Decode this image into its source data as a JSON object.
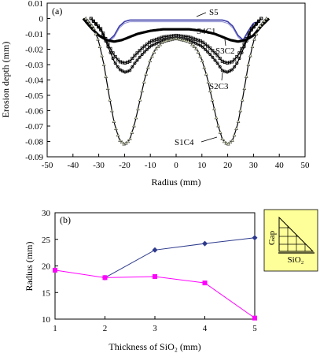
{
  "chart_data": [
    {
      "type": "line",
      "panel_label": "(a)",
      "xlabel": "Radius  (mm)",
      "ylabel": "Erosion depth  (mm)",
      "xlim": [
        -50,
        50
      ],
      "ylim": [
        -0.09,
        0.01
      ],
      "xticks": [
        "-50",
        "-40",
        "-30",
        "-20",
        "-10",
        "0",
        "10",
        "20",
        "30",
        "40",
        "50"
      ],
      "yticks": [
        "0.01",
        "0",
        "-0.01",
        "-0.02",
        "-0.03",
        "-0.04",
        "-0.05",
        "-0.06",
        "-0.07",
        "-0.08",
        "-0.09"
      ],
      "grid": false,
      "series": [
        {
          "name": "S5",
          "color": "#3a3aa8",
          "marker": "none",
          "x": [
            -26,
            -24,
            -22,
            -20,
            -18,
            -15,
            -10,
            0,
            10,
            15,
            18,
            20,
            22,
            24,
            26,
            28,
            30,
            32
          ],
          "y": [
            -0.014,
            -0.011,
            -0.005,
            -0.002,
            -0.001,
            -0.001,
            -0.001,
            -0.001,
            -0.001,
            -0.001,
            -0.001,
            -0.002,
            -0.005,
            -0.011,
            -0.014,
            -0.008,
            -0.003,
            -0.002
          ]
        },
        {
          "name": "S4C1",
          "color": "#000000",
          "marker": "dense",
          "x": [
            -36,
            -33,
            -30,
            -27,
            -24,
            -21,
            -18,
            -15,
            -10,
            -5,
            0,
            5,
            10,
            15,
            18,
            21,
            24,
            27,
            30,
            33,
            36
          ],
          "y": [
            0.0,
            -0.006,
            -0.011,
            -0.014,
            -0.015,
            -0.014,
            -0.012,
            -0.01,
            -0.008,
            -0.007,
            -0.007,
            -0.007,
            -0.008,
            -0.01,
            -0.012,
            -0.014,
            -0.015,
            -0.014,
            -0.011,
            -0.005,
            0.0
          ]
        },
        {
          "name": "S3C2",
          "color": "#000000",
          "marker": "square",
          "x": [
            -33,
            -29,
            -26,
            -24,
            -22,
            -20,
            -18,
            -16,
            -13,
            -10,
            -5,
            0,
            5,
            10,
            13,
            16,
            18,
            20,
            22,
            24,
            26,
            29,
            33
          ],
          "y": [
            0.0,
            -0.007,
            -0.018,
            -0.024,
            -0.028,
            -0.029,
            -0.028,
            -0.024,
            -0.019,
            -0.015,
            -0.012,
            -0.011,
            -0.012,
            -0.015,
            -0.019,
            -0.024,
            -0.028,
            -0.029,
            -0.028,
            -0.024,
            -0.018,
            -0.007,
            0.0
          ]
        },
        {
          "name": "S2C3",
          "color": "#000000",
          "marker": "circle",
          "x": [
            -33,
            -29,
            -26,
            -24,
            -22,
            -20,
            -18,
            -16,
            -13,
            -10,
            -5,
            0,
            5,
            10,
            13,
            16,
            18,
            20,
            22,
            24,
            26,
            29,
            33
          ],
          "y": [
            0.0,
            -0.008,
            -0.02,
            -0.028,
            -0.033,
            -0.035,
            -0.034,
            -0.029,
            -0.023,
            -0.018,
            -0.014,
            -0.013,
            -0.014,
            -0.018,
            -0.023,
            -0.029,
            -0.034,
            -0.035,
            -0.033,
            -0.028,
            -0.02,
            -0.008,
            0.0
          ]
        },
        {
          "name": "S1C4",
          "color": "#000000",
          "marker": "triangle",
          "x": [
            -35,
            -32,
            -30,
            -28,
            -26,
            -24,
            -22,
            -20,
            -18,
            -16,
            -14,
            -12,
            -10,
            -8,
            -5,
            0,
            5,
            8,
            10,
            12,
            14,
            16,
            18,
            20,
            22,
            24,
            26,
            28,
            30,
            32,
            35
          ],
          "y": [
            0.0,
            -0.006,
            -0.015,
            -0.03,
            -0.05,
            -0.068,
            -0.079,
            -0.082,
            -0.079,
            -0.068,
            -0.053,
            -0.038,
            -0.027,
            -0.02,
            -0.015,
            -0.013,
            -0.015,
            -0.02,
            -0.027,
            -0.038,
            -0.053,
            -0.068,
            -0.079,
            -0.082,
            -0.079,
            -0.068,
            -0.05,
            -0.03,
            -0.015,
            -0.006,
            0.0
          ]
        }
      ]
    },
    {
      "type": "line",
      "panel_label": "(b)",
      "xlabel": "Thickness of SiO₂  (mm)",
      "ylabel": "Radius  (mm)",
      "xlim": [
        1,
        5
      ],
      "ylim": [
        10,
        30
      ],
      "xticks": [
        "1",
        "2",
        "3",
        "4",
        "5"
      ],
      "yticks": [
        "10",
        "15",
        "20",
        "25",
        "30"
      ],
      "grid": false,
      "series": [
        {
          "color": "#2d3a8c",
          "marker": "diamond",
          "x": [
            2,
            3,
            4,
            5
          ],
          "y": [
            17.8,
            23.0,
            24.2,
            25.3
          ]
        },
        {
          "color": "#ff00ff",
          "marker": "square",
          "x": [
            1,
            2,
            3,
            4,
            5
          ],
          "y": [
            19.2,
            17.8,
            18.0,
            16.8,
            10.2
          ]
        }
      ],
      "inset": {
        "gap_label": "Gap",
        "sio2_label": "SiO₂",
        "background": "#ffff99"
      }
    }
  ]
}
